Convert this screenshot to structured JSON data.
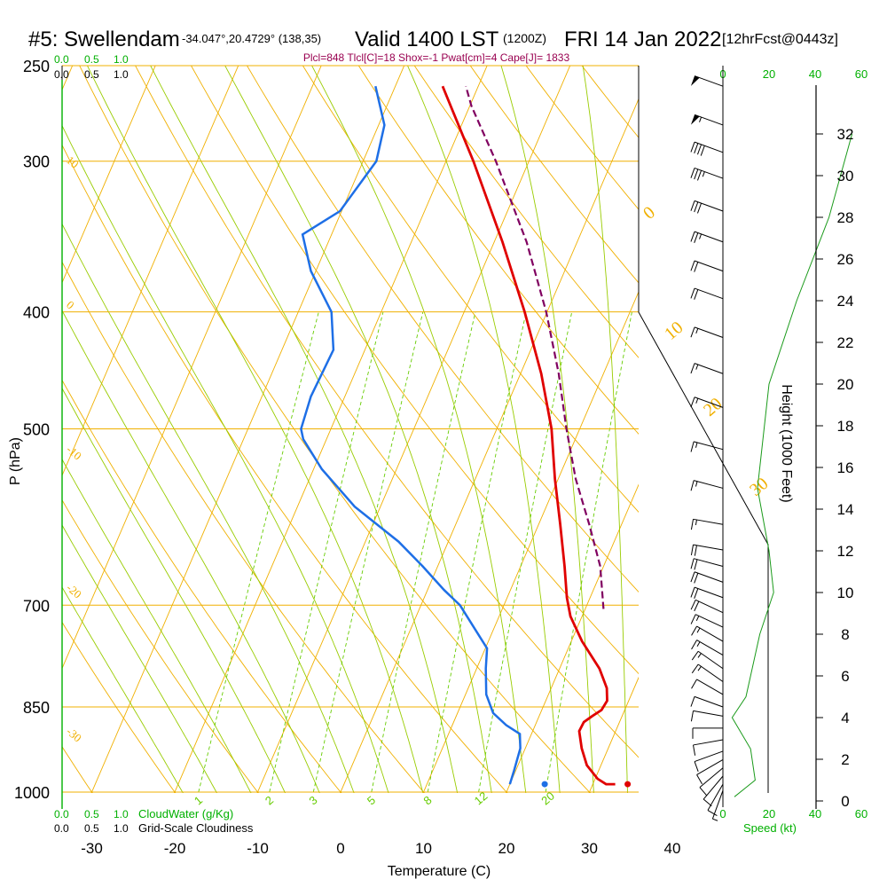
{
  "header": {
    "station": "#5: Swellendam",
    "coords": "-34.047°,20.4729° (138,35)",
    "valid": "Valid 1400 LST",
    "valid_z": "(1200Z)",
    "date": "FRI 14 Jan 2022",
    "forecast": "[12hrFcst@0443z]"
  },
  "indices": "Plcl=848 Tlcl[C]=18 Shox=-1 Pwat[cm]=4 Cape[J]= 1833",
  "colors": {
    "isobar": "#f0b000",
    "isotherm": "#f0b000",
    "dry_adiabat": "#f0b000",
    "moist_adiabat": "#99cc00",
    "mixing_ratio": "#66cc00",
    "temperature": "#e00000",
    "dewpoint": "#1e6fe6",
    "parcel": "#800060",
    "green_text": "#00b000",
    "indices_text": "#990050"
  },
  "chart_data": {
    "type": "line",
    "title": "#5: Swellendam Valid 1400 LST (1200Z) FRI 14 Jan 2022",
    "xlabel": "Temperature (C)",
    "ylabel": "P (hPa)",
    "y2label": "Height (1000 Feet)",
    "xlim": [
      -30,
      40
    ],
    "ylim": [
      1000,
      250
    ],
    "x_ticks": [
      -30,
      -20,
      -10,
      0,
      10,
      20,
      30,
      40
    ],
    "pressure_ticks": [
      250,
      300,
      400,
      500,
      700,
      850,
      1000
    ],
    "height_ticks": [
      0,
      2,
      4,
      6,
      8,
      10,
      12,
      14,
      16,
      18,
      20,
      22,
      24,
      26,
      28,
      30,
      32
    ],
    "temperature_profile": [
      {
        "p": 985,
        "t": 32.7
      },
      {
        "p": 985,
        "t": 31.6
      },
      {
        "p": 975,
        "t": 30.3
      },
      {
        "p": 950,
        "t": 28.3
      },
      {
        "p": 920,
        "t": 26.8
      },
      {
        "p": 890,
        "t": 25.6
      },
      {
        "p": 875,
        "t": 25.7
      },
      {
        "p": 865,
        "t": 26.4
      },
      {
        "p": 855,
        "t": 27.2
      },
      {
        "p": 840,
        "t": 27.4
      },
      {
        "p": 820,
        "t": 26.7
      },
      {
        "p": 790,
        "t": 24.8
      },
      {
        "p": 750,
        "t": 21.3
      },
      {
        "p": 715,
        "t": 18.6
      },
      {
        "p": 690,
        "t": 17.2
      },
      {
        "p": 650,
        "t": 15.3
      },
      {
        "p": 600,
        "t": 12.6
      },
      {
        "p": 550,
        "t": 9.6
      },
      {
        "p": 500,
        "t": 6.6
      },
      {
        "p": 450,
        "t": 2.5
      },
      {
        "p": 400,
        "t": -2.7
      },
      {
        "p": 350,
        "t": -9.0
      },
      {
        "p": 300,
        "t": -16.7
      },
      {
        "p": 270,
        "t": -22.3
      },
      {
        "p": 260,
        "t": -24.3
      }
    ],
    "surface_temperature": 34.2,
    "dewpoint_profile": [
      {
        "p": 985,
        "t": 20.0
      },
      {
        "p": 960,
        "t": 19.8
      },
      {
        "p": 920,
        "t": 19.4
      },
      {
        "p": 895,
        "t": 18.6
      },
      {
        "p": 880,
        "t": 16.5
      },
      {
        "p": 860,
        "t": 14.3
      },
      {
        "p": 830,
        "t": 12.5
      },
      {
        "p": 790,
        "t": 11.1
      },
      {
        "p": 760,
        "t": 10.2
      },
      {
        "p": 730,
        "t": 7.5
      },
      {
        "p": 700,
        "t": 4.7
      },
      {
        "p": 680,
        "t": 2.0
      },
      {
        "p": 650,
        "t": -1.8
      },
      {
        "p": 620,
        "t": -6.0
      },
      {
        "p": 580,
        "t": -13.1
      },
      {
        "p": 540,
        "t": -19.0
      },
      {
        "p": 510,
        "t": -22.8
      },
      {
        "p": 500,
        "t": -23.6
      },
      {
        "p": 470,
        "t": -24.1
      },
      {
        "p": 430,
        "t": -23.8
      },
      {
        "p": 400,
        "t": -26.0
      },
      {
        "p": 370,
        "t": -30.6
      },
      {
        "p": 345,
        "t": -33.5
      },
      {
        "p": 330,
        "t": -30.2
      },
      {
        "p": 300,
        "t": -28.4
      },
      {
        "p": 280,
        "t": -29.3
      },
      {
        "p": 260,
        "t": -32.4
      }
    ],
    "surface_dewpoint": 24.2,
    "parcel_profile": [
      {
        "p": 705,
        "t": 22.2
      },
      {
        "p": 650,
        "t": 19.6
      },
      {
        "p": 600,
        "t": 16.1
      },
      {
        "p": 550,
        "t": 12.1
      },
      {
        "p": 500,
        "t": 8.4
      },
      {
        "p": 450,
        "t": 4.6
      },
      {
        "p": 400,
        "t": -0.1
      },
      {
        "p": 350,
        "t": -6.1
      },
      {
        "p": 300,
        "t": -14.0
      },
      {
        "p": 270,
        "t": -19.8
      },
      {
        "p": 260,
        "t": -21.5
      }
    ],
    "mixing_ratio_labels": [
      "1",
      "2",
      "3",
      "5",
      "8",
      "12",
      "20"
    ],
    "temperature_label_values": [
      "10",
      "0",
      "-10",
      "-20",
      "-30"
    ],
    "dry_adiabat_labels": [
      "0",
      "10",
      "20",
      "30"
    ],
    "cloud_scales": {
      "cloudwater_ticks": [
        "0.0",
        "0.5",
        "1.0"
      ],
      "cloudiness_ticks": [
        "0.0",
        "0.5",
        "1.0"
      ],
      "cloudwater_label": "CloudWater (g/Kg)",
      "cloudiness_label": "Grid-Scale Cloudiness"
    },
    "wind_speed_axis": {
      "label": "Speed (kt)",
      "ticks": [
        "0",
        "20",
        "40",
        "60"
      ],
      "profile_kt": [
        {
          "h_kft": 0.2,
          "s": 5
        },
        {
          "h_kft": 1.0,
          "s": 14
        },
        {
          "h_kft": 2.5,
          "s": 12
        },
        {
          "h_kft": 4.0,
          "s": 4
        },
        {
          "h_kft": 5.0,
          "s": 10
        },
        {
          "h_kft": 8.0,
          "s": 16
        },
        {
          "h_kft": 10.0,
          "s": 22
        },
        {
          "h_kft": 12.0,
          "s": 20
        },
        {
          "h_kft": 15.0,
          "s": 15
        },
        {
          "h_kft": 20.0,
          "s": 20
        },
        {
          "h_kft": 24.0,
          "s": 32
        },
        {
          "h_kft": 28.0,
          "s": 46
        },
        {
          "h_kft": 32.0,
          "s": 56
        }
      ]
    },
    "wind_barbs": [
      {
        "p": 997,
        "speed": 5,
        "dir": 200
      },
      {
        "p": 985,
        "speed": 10,
        "dir": 210
      },
      {
        "p": 970,
        "speed": 10,
        "dir": 220
      },
      {
        "p": 955,
        "speed": 10,
        "dir": 230
      },
      {
        "p": 940,
        "speed": 10,
        "dir": 240
      },
      {
        "p": 925,
        "speed": 10,
        "dir": 250
      },
      {
        "p": 905,
        "speed": 10,
        "dir": 260
      },
      {
        "p": 885,
        "speed": 10,
        "dir": 270
      },
      {
        "p": 865,
        "speed": 10,
        "dir": 280
      },
      {
        "p": 850,
        "speed": 10,
        "dir": 290
      },
      {
        "p": 830,
        "speed": 10,
        "dir": 300
      },
      {
        "p": 810,
        "speed": 15,
        "dir": 305
      },
      {
        "p": 790,
        "speed": 15,
        "dir": 305
      },
      {
        "p": 770,
        "speed": 15,
        "dir": 300
      },
      {
        "p": 750,
        "speed": 15,
        "dir": 300
      },
      {
        "p": 730,
        "speed": 15,
        "dir": 295
      },
      {
        "p": 710,
        "speed": 20,
        "dir": 295
      },
      {
        "p": 690,
        "speed": 20,
        "dir": 290
      },
      {
        "p": 670,
        "speed": 20,
        "dir": 290
      },
      {
        "p": 650,
        "speed": 20,
        "dir": 285
      },
      {
        "p": 630,
        "speed": 20,
        "dir": 280
      },
      {
        "p": 600,
        "speed": 15,
        "dir": 280
      },
      {
        "p": 560,
        "speed": 15,
        "dir": 285
      },
      {
        "p": 520,
        "speed": 15,
        "dir": 285
      },
      {
        "p": 480,
        "speed": 15,
        "dir": 290
      },
      {
        "p": 450,
        "speed": 15,
        "dir": 290
      },
      {
        "p": 420,
        "speed": 15,
        "dir": 290
      },
      {
        "p": 390,
        "speed": 20,
        "dir": 290
      },
      {
        "p": 370,
        "speed": 20,
        "dir": 290
      },
      {
        "p": 350,
        "speed": 25,
        "dir": 290
      },
      {
        "p": 330,
        "speed": 30,
        "dir": 290
      },
      {
        "p": 310,
        "speed": 35,
        "dir": 290
      },
      {
        "p": 295,
        "speed": 40,
        "dir": 290
      },
      {
        "p": 280,
        "speed": 55,
        "dir": 290
      },
      {
        "p": 260,
        "speed": 50,
        "dir": 290
      }
    ]
  }
}
